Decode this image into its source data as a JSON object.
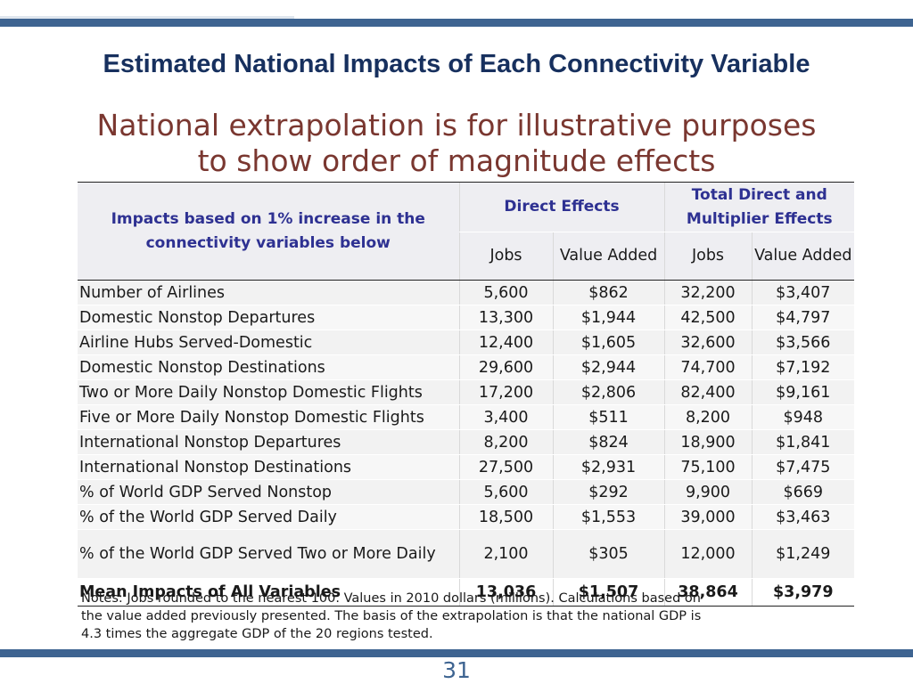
{
  "slide": {
    "title": "Estimated National Impacts of Each Connectivity Variable",
    "subtitle_line1": "National extrapolation is for illustrative purposes",
    "subtitle_line2": "to show order of magnitude effects",
    "page_number": "31",
    "footnote": "Notes: Jobs rounded to the nearest 100.  Values in 2010 dollars (millions). Calculations based on the value added previously presented.  The basis of the extrapolation is that the national GDP is 4.3 times the aggregate GDP of the 20 regions tested.",
    "bar_color": "#3e6491",
    "title_color": "#17305e",
    "subtitle_color": "#7a3730"
  },
  "table": {
    "corner_header": "Impacts based on 1% increase in the connectivity variables below",
    "group_direct": "Direct Effects",
    "group_total": "Total Direct and Multiplier Effects",
    "col_jobs": "Jobs",
    "col_value_added": "Value Added",
    "col_jobs_total": "Jobs",
    "col_value_added_total": "Value Added",
    "rows": [
      {
        "label": "Number of Airlines",
        "direct_jobs": "5,600",
        "direct_va": "$862",
        "total_jobs": "32,200",
        "total_va": "$3,407"
      },
      {
        "label": "Domestic Nonstop Departures",
        "direct_jobs": "13,300",
        "direct_va": "$1,944",
        "total_jobs": "42,500",
        "total_va": "$4,797"
      },
      {
        "label": "Airline Hubs Served-Domestic",
        "direct_jobs": "12,400",
        "direct_va": "$1,605",
        "total_jobs": "32,600",
        "total_va": "$3,566"
      },
      {
        "label": "Domestic Nonstop Destinations",
        "direct_jobs": "29,600",
        "direct_va": "$2,944",
        "total_jobs": "74,700",
        "total_va": "$7,192"
      },
      {
        "label": "Two or More Daily Nonstop Domestic Flights",
        "direct_jobs": "17,200",
        "direct_va": "$2,806",
        "total_jobs": "82,400",
        "total_va": "$9,161"
      },
      {
        "label": "Five or More Daily Nonstop Domestic Flights",
        "direct_jobs": "3,400",
        "direct_va": "$511",
        "total_jobs": "8,200",
        "total_va": "$948"
      },
      {
        "label": "International Nonstop Departures",
        "direct_jobs": "8,200",
        "direct_va": "$824",
        "total_jobs": "18,900",
        "total_va": "$1,841"
      },
      {
        "label": "International Nonstop Destinations",
        "direct_jobs": "27,500",
        "direct_va": "$2,931",
        "total_jobs": "75,100",
        "total_va": "$7,475"
      },
      {
        "label": "% of World GDP Served Nonstop",
        "direct_jobs": "5,600",
        "direct_va": "$292",
        "total_jobs": "9,900",
        "total_va": "$669"
      },
      {
        "label": "% of the World GDP Served Daily",
        "direct_jobs": "18,500",
        "direct_va": "$1,553",
        "total_jobs": "39,000",
        "total_va": "$3,463"
      },
      {
        "label": "% of the World GDP Served Two or More Daily",
        "direct_jobs": "2,100",
        "direct_va": "$305",
        "total_jobs": "12,000",
        "total_va": "$1,249"
      }
    ],
    "mean_row": {
      "label": "Mean Impacts of All Variables",
      "direct_jobs": "13,036",
      "direct_va": "$1,507",
      "total_jobs": "38,864",
      "total_va": "$3,979"
    }
  }
}
